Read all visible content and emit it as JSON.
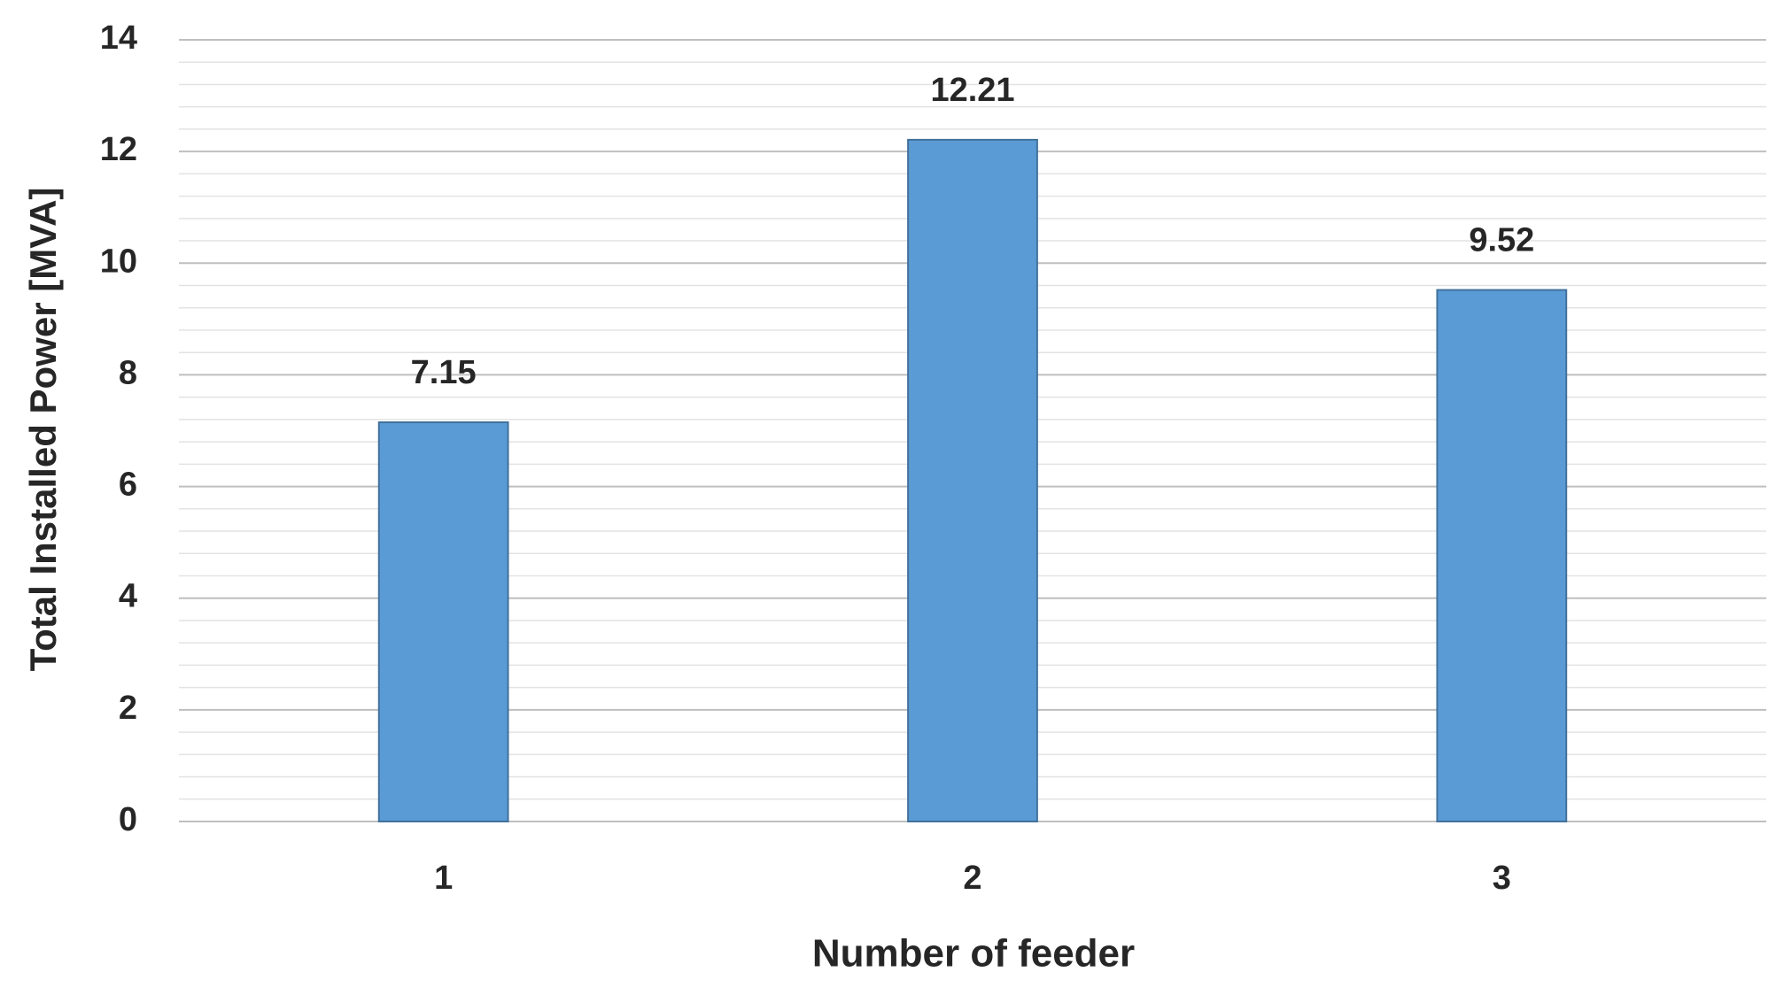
{
  "chart_data": {
    "type": "bar",
    "x_label": "Number of feeder",
    "y_label": "Total Installed Power [MVA]",
    "categories": [
      "1",
      "2",
      "3"
    ],
    "values": [
      7.15,
      12.21,
      9.52
    ],
    "color": "#5b9bd5",
    "ylim": [
      0,
      14
    ],
    "yticks": [
      0,
      2,
      4,
      6,
      8,
      10,
      12,
      14
    ],
    "grid": true,
    "minor_grid_step": 0.4,
    "data_labels": true
  }
}
